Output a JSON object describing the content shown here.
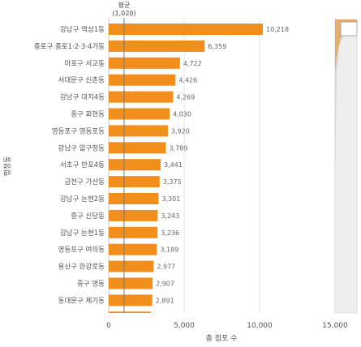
{
  "chart_data": {
    "type": "bar",
    "orientation": "horizontal",
    "categories": [
      "강남구 역삼1동",
      "종로구 종로1·2·3·4가동",
      "마포구 서교동",
      "서대문구 신촌동",
      "강남구 대치4동",
      "중구 회현동",
      "영등포구 영등포동",
      "강남구 압구정동",
      "서초구 반포4동",
      "금천구 가산동",
      "강남구 논현2동",
      "중구 신당동",
      "강남구 논현1동",
      "영등포구 여의동",
      "용산구 한강로동",
      "중구 명동",
      "동대문구 제기동",
      ""
    ],
    "values": [
      10218,
      6359,
      4722,
      4426,
      4269,
      4030,
      3920,
      3789,
      3441,
      3375,
      3301,
      3243,
      3236,
      3189,
      2977,
      2907,
      2891,
      2800
    ],
    "value_labels": [
      "10,218",
      "6,359",
      "4,722",
      "4,426",
      "4,269",
      "4,030",
      "3,920",
      "3,789",
      "3,441",
      "3,375",
      "3,301",
      "3,243",
      "3,236",
      "3,189",
      "2,977",
      "2,907",
      "2,891",
      ""
    ],
    "xlabel": "총 점포 수",
    "ylabel": "행정동",
    "xlim": [
      0,
      15000
    ],
    "xticks": [
      0,
      5000,
      10000,
      15000
    ],
    "xtick_labels": [
      "0",
      "5,000",
      "10,000",
      "15,000"
    ],
    "reference_line": {
      "label": "평균",
      "value_label": "(1,020)",
      "value": 1020
    },
    "bar_color": "#F28E1C",
    "grid": true,
    "legend": "none"
  }
}
